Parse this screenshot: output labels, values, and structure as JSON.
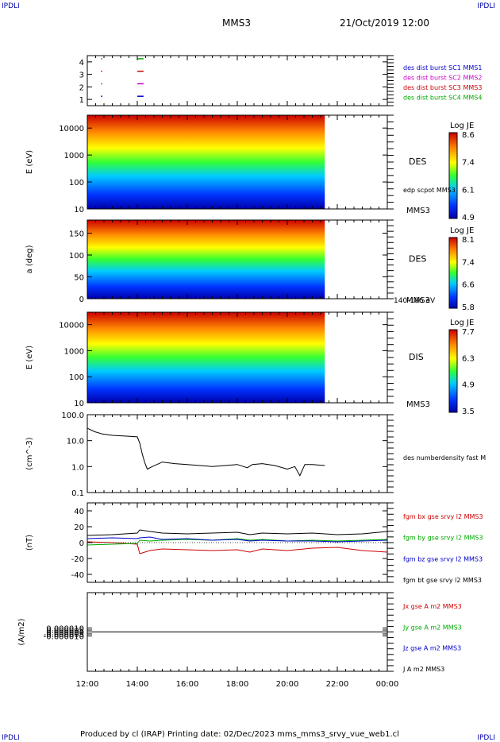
{
  "corners": {
    "tl": "IPDLI",
    "tr": "IPDLI",
    "bl": "IPDLI",
    "br": "IPDLI"
  },
  "header": {
    "spacecraft": "MMS3",
    "datetime": "21/Oct/2019 12:00"
  },
  "footer": {
    "text": "Produced by cl (IRAP)   Printing date: 02/Dec/2023   mms_mms3_srvy_vue_web1.cl"
  },
  "colors": {
    "red": "#cc0000",
    "green": "#00aa00",
    "blue": "#0000cc",
    "magenta": "#cc00cc",
    "black": "#000000"
  },
  "time_axis": {
    "ticks": [
      "12:00",
      "14:00",
      "16:00",
      "18:00",
      "20:00",
      "22:00",
      "00:00"
    ],
    "start_hours": 12,
    "end_hours": 24
  },
  "chart_data": [
    {
      "type": "scatter",
      "name": "burst-availability",
      "ylim": [
        0.5,
        4.5
      ],
      "yticks": [
        "1",
        "2",
        "3",
        "4"
      ],
      "legend": [
        {
          "label": "des dist burst SC1 MMS1",
          "color": "#0000cc"
        },
        {
          "label": "des dist burst SC2 MMS2",
          "color": "#cc00cc"
        },
        {
          "label": "des dist burst SC3 MMS3",
          "color": "#cc0000"
        },
        {
          "label": "des dist burst SC4 MMS4",
          "color": "#00aa00"
        }
      ],
      "segments": [
        {
          "row": 1,
          "color": "#0000cc",
          "intervals": [
            [
              12.55,
              12.6
            ],
            [
              14.0,
              14.25
            ]
          ]
        },
        {
          "row": 2,
          "color": "#cc00cc",
          "intervals": [
            [
              12.55,
              12.6
            ],
            [
              14.0,
              14.25
            ]
          ]
        },
        {
          "row": 3,
          "color": "#cc0000",
          "intervals": [
            [
              12.55,
              12.6
            ],
            [
              14.0,
              14.25
            ]
          ]
        },
        {
          "row": 4,
          "color": "#00aa00",
          "intervals": [
            [
              12.55,
              12.6
            ],
            [
              14.0,
              14.25
            ]
          ]
        }
      ]
    },
    {
      "type": "heatmap",
      "name": "des-energy",
      "ylabel": "E (eV)",
      "yscale": "log",
      "ylim": [
        10,
        30000
      ],
      "yticks": [
        "10",
        "100",
        "1000",
        "10000"
      ],
      "label": "DES",
      "sublabel": "MMS3",
      "overlay": "edp scpot MMS3",
      "colorbar": {
        "title": "Log JE",
        "ticks": [
          "8.6",
          "7.4",
          "6.1",
          "4.9"
        ],
        "range": [
          4.9,
          8.6
        ]
      },
      "data_end_hours": 21.5
    },
    {
      "type": "heatmap",
      "name": "des-pitch",
      "ylabel": "a (deg)",
      "ylim": [
        0,
        180
      ],
      "yticks": [
        "0",
        "50",
        "100",
        "150"
      ],
      "label": "DES",
      "sublabel": "MMS3",
      "note": "140-186 eV",
      "colorbar": {
        "title": "Log JE",
        "ticks": [
          "8.1",
          "7.4",
          "6.6",
          "5.8"
        ],
        "range": [
          5.8,
          8.1
        ]
      },
      "data_end_hours": 21.5
    },
    {
      "type": "heatmap",
      "name": "dis-energy",
      "ylabel": "E (eV)",
      "yscale": "log",
      "ylim": [
        10,
        30000
      ],
      "yticks": [
        "10",
        "100",
        "1000",
        "10000"
      ],
      "label": "DIS",
      "sublabel": "MMS3",
      "colorbar": {
        "title": "Log JE",
        "ticks": [
          "7.7",
          "6.3",
          "4.9",
          "3.5"
        ],
        "range": [
          3.5,
          7.7
        ]
      },
      "data_end_hours": 21.5
    },
    {
      "type": "line",
      "name": "density",
      "ylabel": "(cm^-3)",
      "yscale": "log",
      "ylim": [
        0.1,
        100
      ],
      "yticks": [
        "0.1",
        "1.0",
        "10.0",
        "100.0"
      ],
      "legend": [
        {
          "label": "des numberdensity fast M",
          "color": "#000000"
        }
      ],
      "series": [
        {
          "color": "#000000",
          "x": [
            12.0,
            12.3,
            12.6,
            13.0,
            13.5,
            14.0,
            14.1,
            14.2,
            14.3,
            14.4,
            14.6,
            15.0,
            15.5,
            16.0,
            16.5,
            17.0,
            17.5,
            18.0,
            18.4,
            18.6,
            19.0,
            19.5,
            20.0,
            20.3,
            20.5,
            20.7,
            21.0,
            21.5
          ],
          "y": [
            30,
            22,
            18,
            16,
            15,
            14,
            8,
            3.0,
            1.4,
            0.8,
            1.0,
            1.5,
            1.3,
            1.2,
            1.1,
            1.0,
            1.1,
            1.2,
            0.9,
            1.2,
            1.3,
            1.1,
            0.8,
            1.0,
            0.45,
            1.2,
            1.2,
            1.1
          ]
        }
      ]
    },
    {
      "type": "line",
      "name": "magnetic-field",
      "ylabel": "(nT)",
      "ylim": [
        -50,
        50
      ],
      "yticks": [
        "-40",
        "-20",
        "0",
        "20",
        "40"
      ],
      "legend": [
        {
          "label": "fgm bx gse srvy l2 MMS3",
          "color": "#cc0000"
        },
        {
          "label": "fgm by gse srvy l2 MMS3",
          "color": "#00aa00"
        },
        {
          "label": "fgm bz gse srvy l2 MMS3",
          "color": "#0000cc"
        },
        {
          "label": "fgm bt gse srvy l2 MMS3",
          "color": "#000000"
        }
      ],
      "x": [
        12.0,
        13.0,
        14.0,
        14.1,
        14.5,
        15.0,
        16.0,
        17.0,
        18.0,
        18.5,
        19.0,
        20.0,
        21.0,
        22.0,
        23.0,
        24.0
      ],
      "series": [
        {
          "color": "#cc0000",
          "y": [
            1,
            0,
            -2,
            -14,
            -10,
            -8,
            -9,
            -10,
            -9,
            -12,
            -8,
            -10,
            -7,
            -6,
            -10,
            -12
          ]
        },
        {
          "color": "#00aa00",
          "y": [
            -3,
            -2,
            -1,
            3,
            2,
            3,
            4,
            3,
            5,
            3,
            4,
            2,
            3,
            2,
            3,
            4
          ]
        },
        {
          "color": "#0000cc",
          "y": [
            5,
            6,
            5,
            6,
            7,
            4,
            5,
            3,
            4,
            2,
            3,
            2,
            2,
            1,
            2,
            3
          ]
        },
        {
          "color": "#000000",
          "y": [
            9,
            10,
            12,
            16,
            14,
            12,
            11,
            12,
            13,
            10,
            12,
            11,
            12,
            10,
            11,
            14
          ]
        }
      ]
    },
    {
      "type": "line",
      "name": "current-density",
      "ylabel": "(A/m2)",
      "ylim": [
        -0.0001,
        0.0001
      ],
      "yticks": [
        "-0.000010",
        "-0.000005",
        "0.000000",
        "0.000005",
        "0.000010"
      ],
      "legend": [
        {
          "label": "Jx gse A m2 MMS3",
          "color": "#cc0000"
        },
        {
          "label": "Jy gse A m2 MMS3",
          "color": "#00aa00"
        },
        {
          "label": "Jz gse A m2 MMS3",
          "color": "#0000cc"
        },
        {
          "label": "J A m2 MMS3",
          "color": "#000000"
        }
      ],
      "series": [
        {
          "color": "#000000",
          "x": [
            12,
            14,
            16,
            18,
            20,
            22,
            24
          ],
          "y": [
            0,
            0,
            0,
            0,
            0,
            0,
            0
          ]
        }
      ]
    }
  ]
}
